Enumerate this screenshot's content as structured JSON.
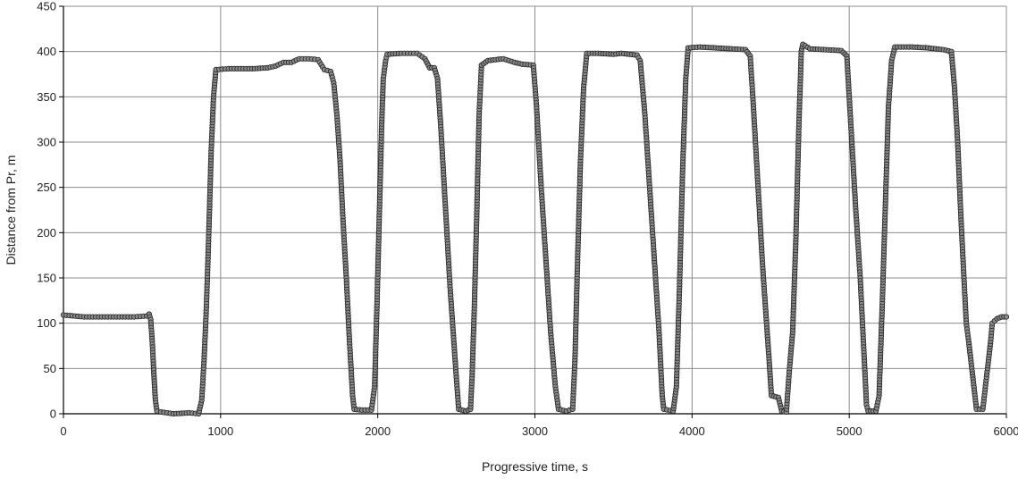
{
  "chart_data": {
    "type": "scatter",
    "title": "",
    "xlabel": "Progressive time, s",
    "ylabel": "Distance from Pr, m",
    "xlim": [
      0,
      6000
    ],
    "ylim": [
      0,
      450
    ],
    "x_ticks": [
      0,
      1000,
      2000,
      3000,
      4000,
      5000,
      6000
    ],
    "y_ticks": [
      0,
      50,
      100,
      150,
      200,
      250,
      300,
      350,
      400,
      450
    ],
    "x_tick_labels": [
      "0",
      "1000",
      "2000",
      "3000",
      "4000",
      "5000",
      "6000"
    ],
    "y_tick_labels": [
      "0",
      "50",
      "100",
      "150",
      "200",
      "250",
      "300",
      "350",
      "400",
      "450"
    ],
    "grid": true,
    "legend": "none",
    "colors": {
      "marker_fill": "#8a8a8a",
      "marker_stroke": "#222222",
      "line": "#000000",
      "grid": "#8c8c8c"
    },
    "series": [
      {
        "points": [
          [
            0,
            109
          ],
          [
            130,
            107
          ],
          [
            300,
            107
          ],
          [
            450,
            107
          ],
          [
            530,
            108
          ],
          [
            545,
            110
          ],
          [
            555,
            104
          ],
          [
            565,
            80
          ],
          [
            575,
            45
          ],
          [
            585,
            15
          ],
          [
            595,
            3
          ],
          [
            620,
            2
          ],
          [
            700,
            0
          ],
          [
            800,
            1
          ],
          [
            860,
            0
          ],
          [
            880,
            15
          ],
          [
            895,
            60
          ],
          [
            910,
            120
          ],
          [
            925,
            200
          ],
          [
            940,
            290
          ],
          [
            955,
            350
          ],
          [
            970,
            380
          ],
          [
            1050,
            381
          ],
          [
            1200,
            381
          ],
          [
            1300,
            382
          ],
          [
            1350,
            384
          ],
          [
            1400,
            388
          ],
          [
            1450,
            388
          ],
          [
            1500,
            392
          ],
          [
            1560,
            392
          ],
          [
            1620,
            391
          ],
          [
            1660,
            380
          ],
          [
            1700,
            378
          ],
          [
            1720,
            365
          ],
          [
            1740,
            330
          ],
          [
            1760,
            280
          ],
          [
            1780,
            210
          ],
          [
            1800,
            150
          ],
          [
            1820,
            80
          ],
          [
            1840,
            20
          ],
          [
            1850,
            5
          ],
          [
            1900,
            4
          ],
          [
            1960,
            4
          ],
          [
            1980,
            30
          ],
          [
            1995,
            120
          ],
          [
            2010,
            220
          ],
          [
            2025,
            320
          ],
          [
            2035,
            370
          ],
          [
            2050,
            390
          ],
          [
            2060,
            397
          ],
          [
            2150,
            398
          ],
          [
            2250,
            398
          ],
          [
            2300,
            392
          ],
          [
            2330,
            382
          ],
          [
            2360,
            382
          ],
          [
            2380,
            370
          ],
          [
            2400,
            320
          ],
          [
            2420,
            260
          ],
          [
            2440,
            200
          ],
          [
            2460,
            140
          ],
          [
            2480,
            90
          ],
          [
            2500,
            40
          ],
          [
            2515,
            5
          ],
          [
            2560,
            3
          ],
          [
            2590,
            5
          ],
          [
            2600,
            40
          ],
          [
            2615,
            120
          ],
          [
            2630,
            220
          ],
          [
            2645,
            330
          ],
          [
            2660,
            385
          ],
          [
            2700,
            390
          ],
          [
            2800,
            392
          ],
          [
            2870,
            388
          ],
          [
            2920,
            386
          ],
          [
            2990,
            385
          ],
          [
            3010,
            340
          ],
          [
            3040,
            250
          ],
          [
            3070,
            170
          ],
          [
            3100,
            90
          ],
          [
            3130,
            30
          ],
          [
            3150,
            5
          ],
          [
            3200,
            3
          ],
          [
            3240,
            5
          ],
          [
            3255,
            60
          ],
          [
            3270,
            160
          ],
          [
            3290,
            280
          ],
          [
            3310,
            360
          ],
          [
            3330,
            398
          ],
          [
            3400,
            398
          ],
          [
            3500,
            397
          ],
          [
            3550,
            398
          ],
          [
            3650,
            396
          ],
          [
            3670,
            390
          ],
          [
            3700,
            330
          ],
          [
            3730,
            250
          ],
          [
            3760,
            170
          ],
          [
            3790,
            90
          ],
          [
            3810,
            20
          ],
          [
            3820,
            5
          ],
          [
            3880,
            3
          ],
          [
            3900,
            30
          ],
          [
            3920,
            140
          ],
          [
            3940,
            270
          ],
          [
            3960,
            370
          ],
          [
            3975,
            404
          ],
          [
            4050,
            405
          ],
          [
            4150,
            404
          ],
          [
            4250,
            403
          ],
          [
            4340,
            402
          ],
          [
            4370,
            395
          ],
          [
            4390,
            340
          ],
          [
            4410,
            280
          ],
          [
            4430,
            220
          ],
          [
            4450,
            160
          ],
          [
            4470,
            110
          ],
          [
            4490,
            60
          ],
          [
            4505,
            20
          ],
          [
            4550,
            18
          ],
          [
            4570,
            3
          ],
          [
            4600,
            2
          ],
          [
            4620,
            50
          ],
          [
            4640,
            90
          ],
          [
            4660,
            190
          ],
          [
            4680,
            320
          ],
          [
            4695,
            400
          ],
          [
            4705,
            408
          ],
          [
            4750,
            403
          ],
          [
            4850,
            402
          ],
          [
            4950,
            401
          ],
          [
            4985,
            395
          ],
          [
            5010,
            320
          ],
          [
            5040,
            230
          ],
          [
            5070,
            150
          ],
          [
            5090,
            80
          ],
          [
            5110,
            10
          ],
          [
            5120,
            3
          ],
          [
            5170,
            3
          ],
          [
            5190,
            20
          ],
          [
            5210,
            120
          ],
          [
            5230,
            230
          ],
          [
            5250,
            340
          ],
          [
            5270,
            390
          ],
          [
            5290,
            405
          ],
          [
            5400,
            405
          ],
          [
            5500,
            404
          ],
          [
            5600,
            402
          ],
          [
            5650,
            400
          ],
          [
            5670,
            360
          ],
          [
            5690,
            300
          ],
          [
            5710,
            220
          ],
          [
            5730,
            150
          ],
          [
            5745,
            100
          ],
          [
            5760,
            80
          ],
          [
            5780,
            50
          ],
          [
            5800,
            20
          ],
          [
            5810,
            5
          ],
          [
            5850,
            5
          ],
          [
            5880,
            50
          ],
          [
            5900,
            80
          ],
          [
            5910,
            100
          ],
          [
            5940,
            105
          ],
          [
            5970,
            107
          ],
          [
            6000,
            107
          ]
        ]
      }
    ]
  }
}
